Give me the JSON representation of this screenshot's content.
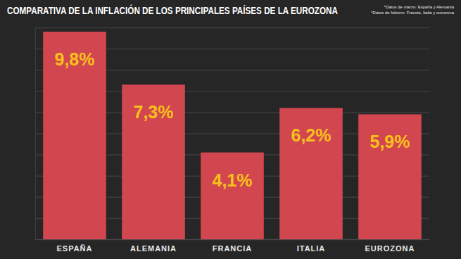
{
  "chart_data": {
    "type": "bar",
    "title": "COMPARATIVA DE LA INFLACIÓN DE LOS PRINCIPALES PAÍSES DE LA EUROZONA",
    "annotations": [
      "*Datos de marzo: España y Alemania",
      "*Datos de febrero: Francia, Italia y eurozona"
    ],
    "categories": [
      "ESPAÑA",
      "ALEMANIA",
      "FRANCIA",
      "ITALIA",
      "EUROZONA"
    ],
    "values": [
      9.8,
      7.3,
      4.1,
      6.2,
      5.9
    ],
    "value_labels": [
      "9,8%",
      "7,3%",
      "4,1%",
      "6,2%",
      "5,9%"
    ],
    "color": "#d2464f",
    "ylim": [
      0,
      10
    ],
    "yticks": [
      0,
      1,
      2,
      3,
      4,
      5,
      6,
      7,
      8,
      9,
      10
    ],
    "grid": true,
    "data_labels": true,
    "tick_labels": "x"
  }
}
